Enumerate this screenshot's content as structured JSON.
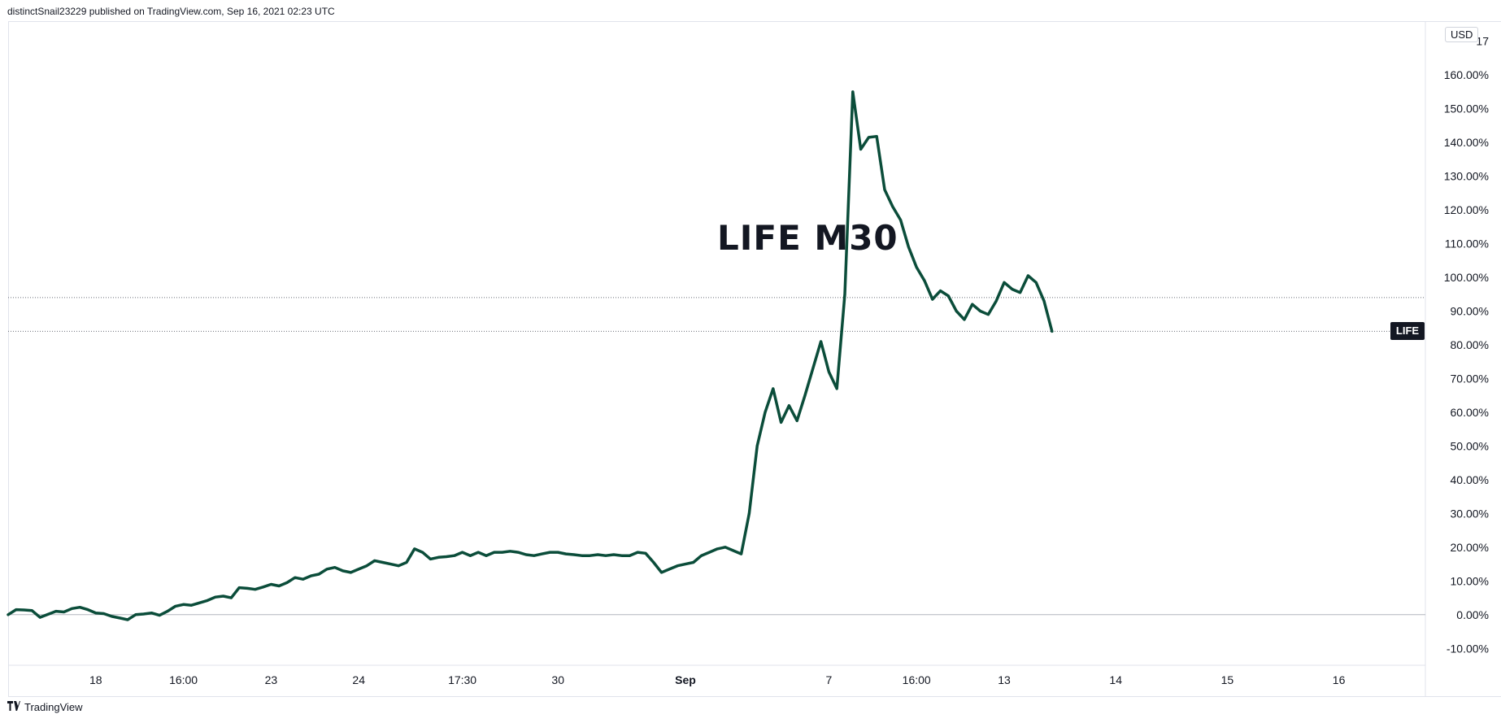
{
  "header": {
    "published_note": "distinctSnail23229 published on TradingView.com, Sep 16, 2021 02:23 UTC"
  },
  "footer": {
    "brand": "TradingView",
    "logo_icon": "tradingview-logo-icon"
  },
  "currency_badge": "USD",
  "symbol_label": "LIFE",
  "colors": {
    "line": "#0b4d3a",
    "grid": "#e0e3eb",
    "baseline": "#b2b5be",
    "label_bg": "#131722"
  },
  "chart_data": {
    "type": "line",
    "title": "LIFE M30",
    "series": [
      {
        "name": "LIFE",
        "values": [
          0.0,
          1.5,
          1.4,
          1.2,
          -0.8,
          0.1,
          1.0,
          0.8,
          1.8,
          2.2,
          1.5,
          0.5,
          0.3,
          -0.5,
          -1.0,
          -1.5,
          0.0,
          0.2,
          0.5,
          -0.2,
          1.0,
          2.5,
          3.0,
          2.8,
          3.5,
          4.2,
          5.2,
          5.5,
          5.0,
          8.0,
          7.8,
          7.5,
          8.2,
          9.0,
          8.5,
          9.5,
          11.0,
          10.5,
          11.5,
          12.0,
          13.5,
          14.0,
          13.0,
          12.5,
          13.5,
          14.5,
          16.0,
          15.5,
          15.0,
          14.5,
          15.5,
          19.5,
          18.5,
          16.5,
          17.0,
          17.2,
          17.5,
          18.5,
          17.5,
          18.5,
          17.5,
          18.5,
          18.5,
          18.8,
          18.5,
          17.8,
          17.5,
          18.0,
          18.5,
          18.5,
          18.0,
          17.8,
          17.5,
          17.5,
          17.8,
          17.5,
          17.8,
          17.5,
          17.5,
          18.5,
          18.2,
          15.5,
          12.5,
          13.5,
          14.5,
          15.0,
          15.5,
          17.5,
          18.5,
          19.5,
          20.0,
          19.0,
          18.0,
          30.0,
          50.0,
          60.0,
          67.0,
          57.0,
          62.0,
          57.5,
          65.0,
          73.0,
          81.0,
          72.0,
          67.0,
          95.0,
          155.0,
          138.0,
          141.5,
          141.8,
          126.0,
          121.0,
          117.0,
          109.0,
          103.0,
          99.0,
          93.5,
          96.0,
          94.5,
          90.0,
          87.5,
          92.0,
          90.0,
          89.0,
          93.0,
          98.5,
          96.5,
          95.5,
          100.5,
          98.5,
          93.0,
          84.0
        ],
        "last_value": 84.0,
        "prev_close": 94.0
      }
    ],
    "y_axis": {
      "min": -15,
      "max": 175,
      "unit": "%",
      "position": "right",
      "ticks": [
        "-10.00%",
        "0.00%",
        "10.00%",
        "20.00%",
        "30.00%",
        "40.00%",
        "50.00%",
        "60.00%",
        "70.00%",
        "80.00%",
        "90.00%",
        "100.00%",
        "110.00%",
        "120.00%",
        "130.00%",
        "140.00%",
        "150.00%",
        "160.00%",
        "17"
      ],
      "tick_values": [
        -10,
        0,
        10,
        20,
        30,
        40,
        50,
        60,
        70,
        80,
        90,
        100,
        110,
        120,
        130,
        140,
        150,
        160,
        170
      ]
    },
    "x_axis": {
      "ticks": [
        {
          "label": "18",
          "index": 11,
          "bold": false
        },
        {
          "label": "16:00",
          "index": 22,
          "bold": false
        },
        {
          "label": "23",
          "index": 33,
          "bold": false
        },
        {
          "label": "24",
          "index": 44,
          "bold": false
        },
        {
          "label": "17:30",
          "index": 57,
          "bold": false
        },
        {
          "label": "30",
          "index": 69,
          "bold": false
        },
        {
          "label": "Sep",
          "index": 85,
          "bold": true
        },
        {
          "label": "7",
          "index": 103,
          "bold": false
        },
        {
          "label": "16:00",
          "index": 114,
          "bold": false
        },
        {
          "label": "13",
          "index": 125,
          "bold": false
        },
        {
          "label": "14",
          "index": 139,
          "bold": false
        },
        {
          "label": "15",
          "index": 153,
          "bold": false
        },
        {
          "label": "16",
          "index": 167,
          "bold": false
        }
      ]
    },
    "grid": false,
    "legend": "none"
  }
}
